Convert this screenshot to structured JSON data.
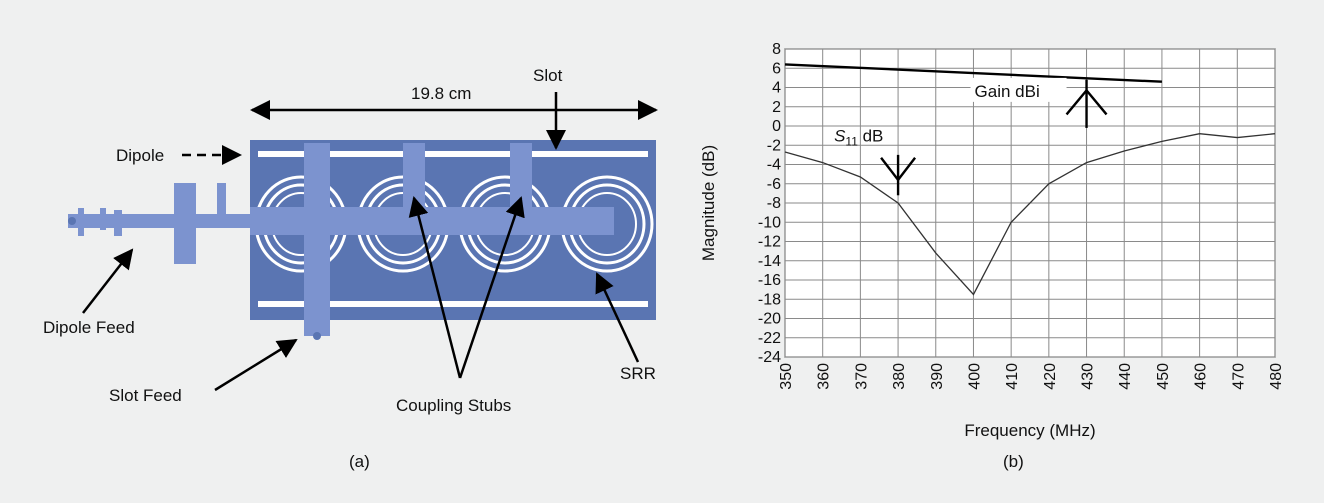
{
  "left_panel": {
    "dimension": "19.8 cm",
    "labels": {
      "slot": "Slot",
      "dipole": "Dipole",
      "dipole_feed": "Dipole Feed",
      "slot_feed": "Slot Feed",
      "coupling_stubs": "Coupling Stubs",
      "srr": "SRR"
    },
    "caption": "(a)"
  },
  "right_panel": {
    "caption": "(b)"
  },
  "colors": {
    "background": "#eff0f0",
    "substrate": "#5a75b2",
    "metal": "#7c93cf",
    "srr_ring": "#ffffff"
  },
  "chart_data": {
    "type": "line",
    "xlabel": "Frequency (MHz)",
    "ylabel": "Magnitude (dB)",
    "xlim": [
      350,
      480
    ],
    "ylim": [
      -24,
      8
    ],
    "x_ticks": [
      350,
      360,
      370,
      380,
      390,
      400,
      410,
      420,
      430,
      440,
      450,
      460,
      470,
      480
    ],
    "y_ticks": [
      8,
      6,
      4,
      2,
      0,
      -2,
      -4,
      -6,
      -8,
      -10,
      -12,
      -14,
      -16,
      -18,
      -20,
      -22,
      -24
    ],
    "grid": true,
    "series": [
      {
        "name": "Gain dBi",
        "x": [
          350,
          450
        ],
        "y": [
          6.4,
          4.6
        ]
      },
      {
        "name": "S11 dB",
        "x": [
          350,
          360,
          370,
          380,
          390,
          400,
          410,
          420,
          430,
          440,
          450,
          460,
          470,
          480
        ],
        "y": [
          -2.7,
          -3.8,
          -5.3,
          -8.0,
          -13.2,
          -17.5,
          -10.0,
          -6.0,
          -3.8,
          -2.6,
          -1.6,
          -0.8,
          -1.2,
          -0.8
        ]
      }
    ],
    "annotations": {
      "gain_label": "Gain dBi",
      "s11_label_main": "S",
      "s11_label_sub": "11",
      "s11_label_unit": " dB"
    }
  }
}
